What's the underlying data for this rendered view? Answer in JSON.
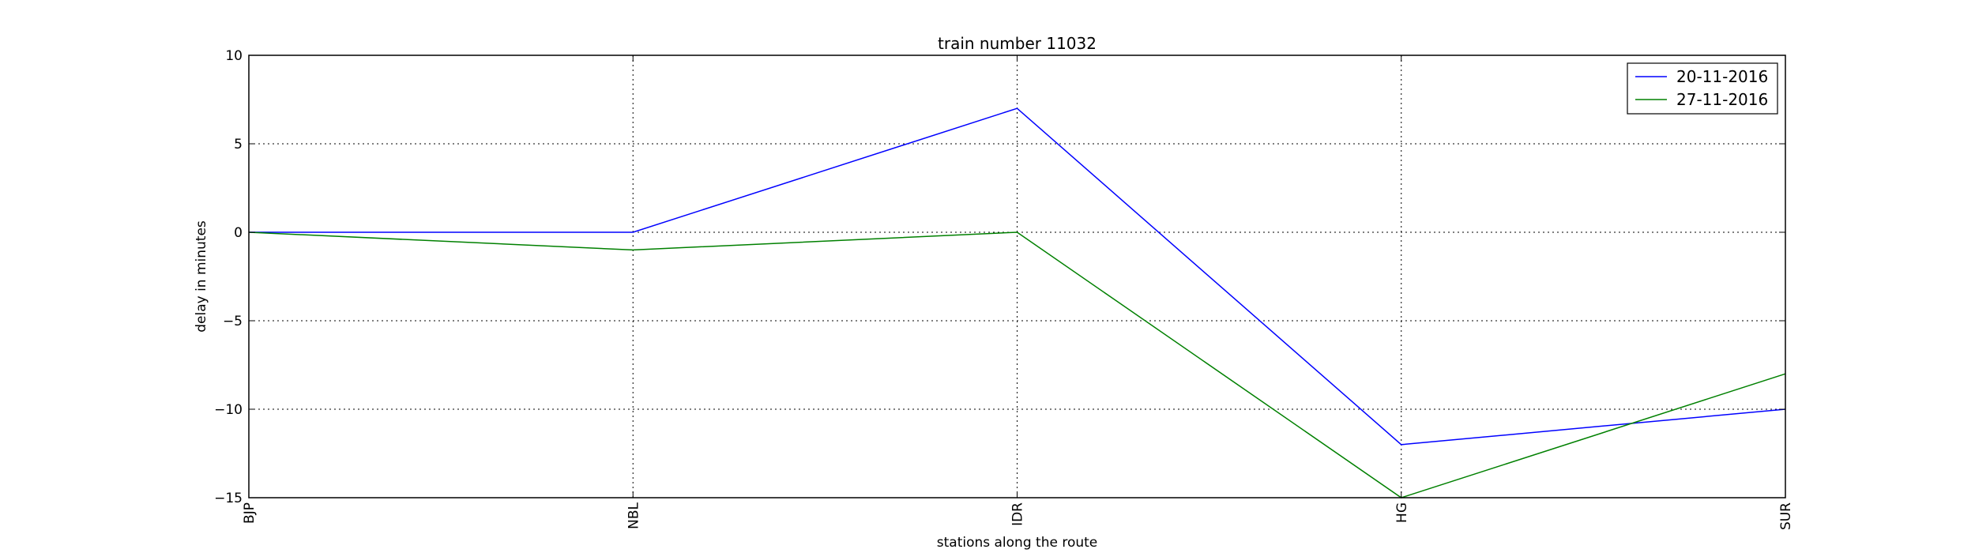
{
  "chart_data": {
    "type": "line",
    "title": "train number 11032",
    "xlabel": "stations along the route",
    "ylabel": "delay in minutes",
    "categories": [
      "BJP",
      "NBL",
      "IDR",
      "HG",
      "SUR"
    ],
    "ylim": [
      -15,
      10
    ],
    "yticks": [
      10,
      5,
      0,
      -5,
      -10,
      -15
    ],
    "ytick_labels": [
      "10",
      "5",
      "0",
      "−5",
      "−10",
      "−15"
    ],
    "grid": true,
    "legend_position": "top-right",
    "series": [
      {
        "name": "20-11-2016",
        "color": "#0000ff",
        "values": [
          0,
          0,
          7,
          -12,
          -10
        ]
      },
      {
        "name": "27-11-2016",
        "color": "#008000",
        "values": [
          0,
          -1,
          0,
          -15,
          -8
        ]
      }
    ]
  }
}
